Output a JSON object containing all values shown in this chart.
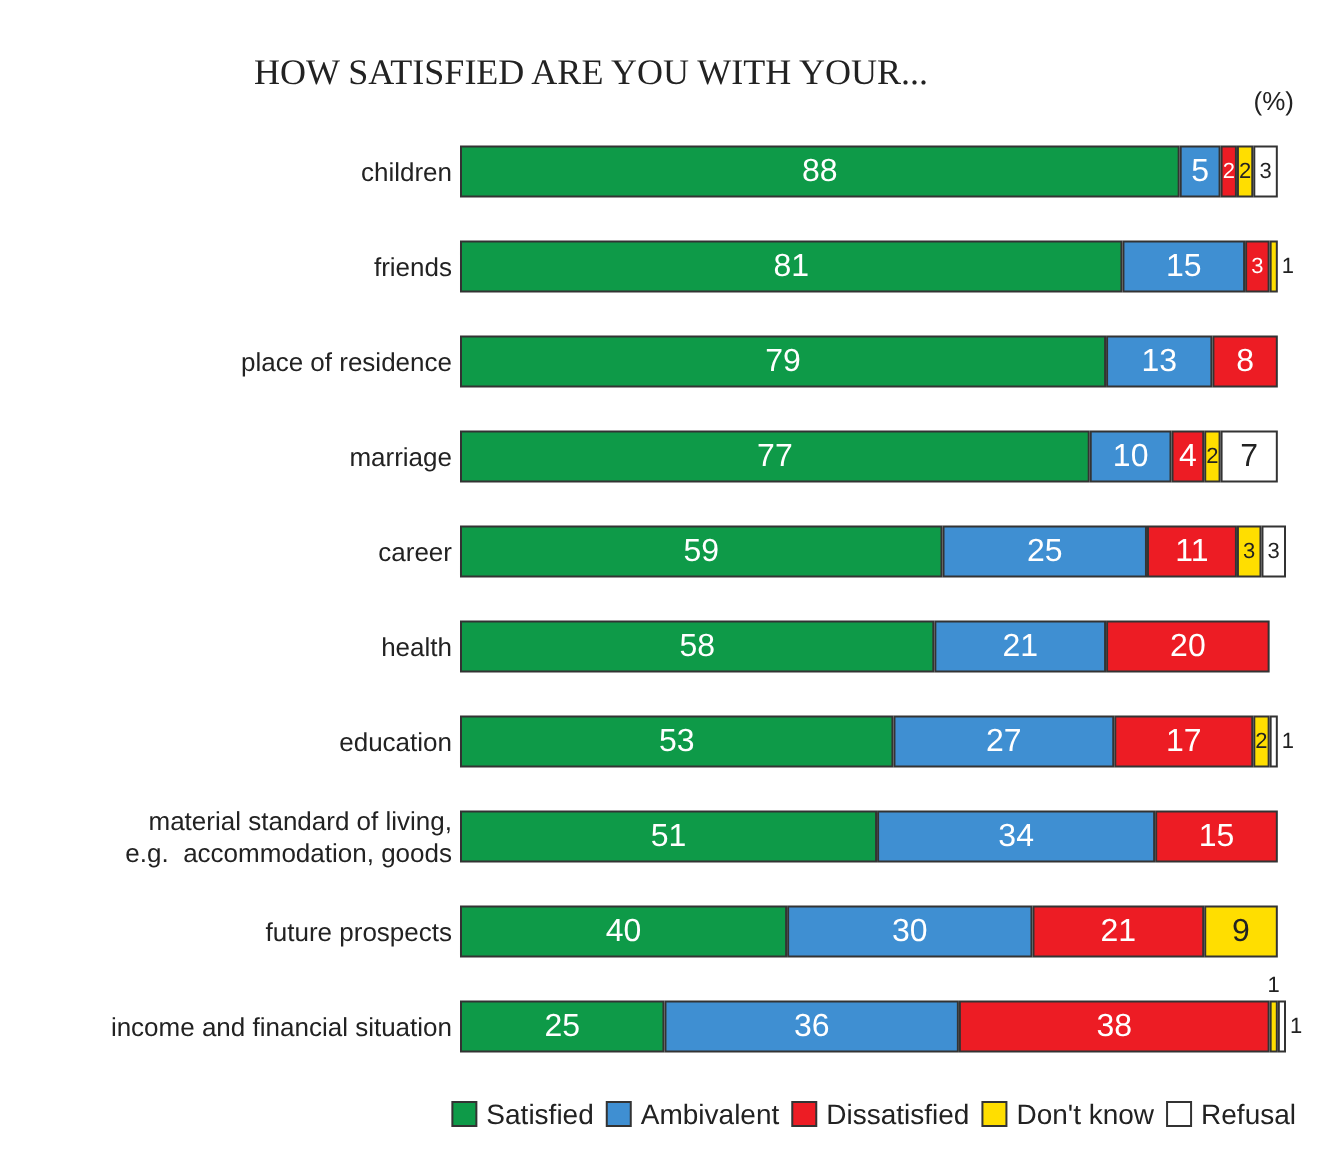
{
  "chart_data": {
    "type": "bar",
    "orientation": "horizontal",
    "stacked": true,
    "title": "HOW SATISFIED ARE YOU WITH YOUR...",
    "annotations": [
      "(%)"
    ],
    "categories": [
      "children",
      "friends",
      "place of residence",
      "marriage",
      "career",
      "health",
      "education",
      "material standard of living,\ne.g.  accommodation, goods",
      "future prospects",
      "income and financial situation"
    ],
    "series": [
      {
        "name": "Satisfied",
        "color": "#0e9a48",
        "values": [
          88,
          81,
          79,
          77,
          59,
          58,
          53,
          51,
          40,
          25
        ]
      },
      {
        "name": "Ambivalent",
        "color": "#3f8fd2",
        "values": [
          5,
          15,
          13,
          10,
          25,
          21,
          27,
          34,
          30,
          36
        ]
      },
      {
        "name": "Dissatisfied",
        "color": "#ed1c24",
        "values": [
          2,
          3,
          8,
          4,
          11,
          20,
          17,
          15,
          21,
          38
        ]
      },
      {
        "name": "Don't know",
        "color": "#ffde00",
        "values": [
          2,
          1,
          null,
          2,
          3,
          null,
          2,
          null,
          9,
          1
        ]
      },
      {
        "name": "Refusal",
        "color": "#ffffff",
        "values": [
          3,
          null,
          null,
          7,
          3,
          null,
          1,
          null,
          null,
          1
        ]
      }
    ],
    "data_labels": true,
    "tick_labels": "y",
    "legend": "bottom right"
  }
}
